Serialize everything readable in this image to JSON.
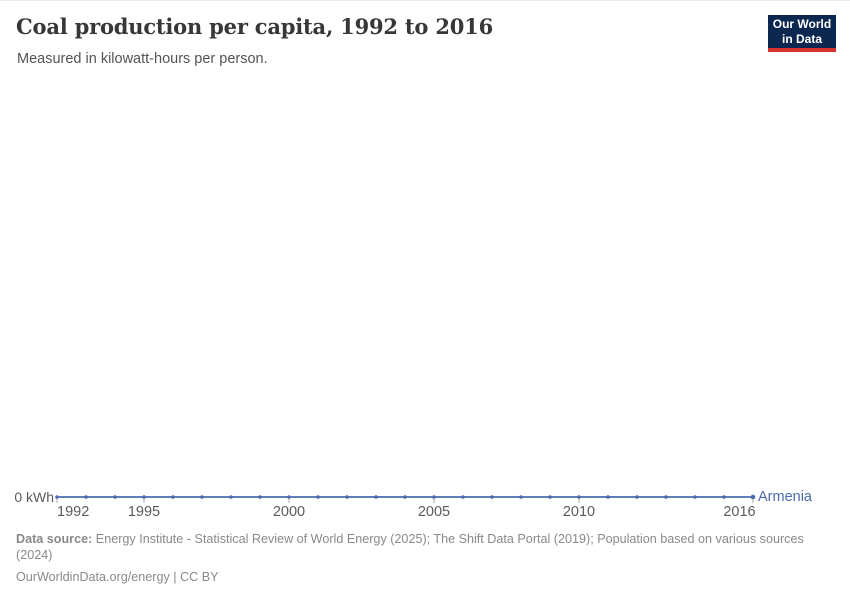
{
  "header": {
    "title": "Coal production per capita, 1992 to 2016",
    "subtitle": "Measured in kilowatt-hours per person.",
    "logo": {
      "line1": "Our World",
      "line2": "in Data"
    }
  },
  "chart_data": {
    "type": "line",
    "title": "Coal production per capita, 1992 to 2016",
    "subtitle": "Measured in kilowatt-hours per person.",
    "unit": "kilowatt-hours per person",
    "xlim": [
      1992,
      2016
    ],
    "ylim": [
      0,
      0
    ],
    "grid": false,
    "legend_position": "right-of-line-end",
    "x_ticks": [
      1992,
      1995,
      2000,
      2005,
      2010,
      2016
    ],
    "y_tick_label": "0 kWh",
    "x": [
      1992,
      1993,
      1994,
      1995,
      1996,
      1997,
      1998,
      1999,
      2000,
      2001,
      2002,
      2003,
      2004,
      2005,
      2006,
      2007,
      2008,
      2009,
      2010,
      2011,
      2012,
      2013,
      2014,
      2015,
      2016
    ],
    "series": [
      {
        "name": "Armenia",
        "color": "#4b6bac",
        "values": [
          0,
          0,
          0,
          0,
          0,
          0,
          0,
          0,
          0,
          0,
          0,
          0,
          0,
          0,
          0,
          0,
          0,
          0,
          0,
          0,
          0,
          0,
          0,
          0,
          0
        ]
      }
    ]
  },
  "colors": {
    "series_blue": "#4b6bac",
    "axis_text": "#5b5b5b",
    "tick_mark": "#a8a8a8",
    "title_text": "#373737",
    "footer_text": "#898989",
    "logo_navy": "#0c2850",
    "logo_red": "#d7332e"
  },
  "footer": {
    "data_source_label": "Data source:",
    "data_source_text": " Energy Institute - Statistical Review of World Energy (2025); The Shift Data Portal (2019); Population based on various sources (2024)",
    "license_line": "OurWorldinData.org/energy | CC BY"
  }
}
